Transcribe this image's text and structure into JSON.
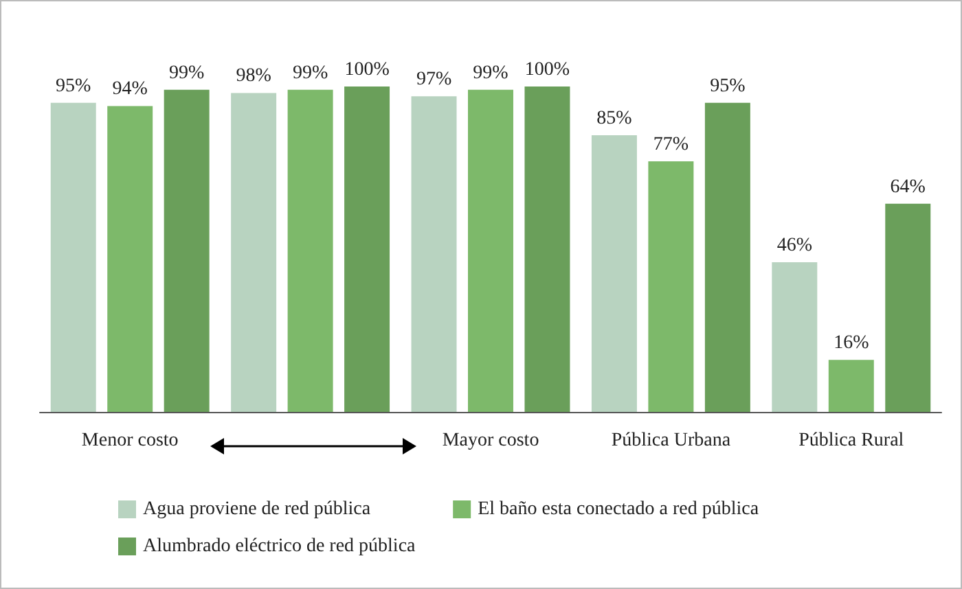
{
  "chart_data": {
    "type": "bar",
    "categories": [
      "Menor costo",
      null,
      "Mayor costo",
      "Pública Urbana",
      "Pública Rural"
    ],
    "series": [
      {
        "name": "Agua proviene de red pública",
        "color": "#b8d3c0",
        "values": [
          95,
          98,
          97,
          85,
          46
        ],
        "value_labels": [
          "95%",
          "98%",
          "97%",
          "85%",
          "46%"
        ]
      },
      {
        "name": "El baño esta conectado a red pública",
        "color": "#7db96a",
        "values": [
          94,
          99,
          99,
          77,
          16
        ],
        "value_labels": [
          "94%",
          "99%",
          "99%",
          "77%",
          "16%"
        ]
      },
      {
        "name": "Alumbrado eléctrico de red pública",
        "color": "#6a9f5a",
        "values": [
          99,
          100,
          100,
          95,
          64
        ],
        "value_labels": [
          "99%",
          "100%",
          "100%",
          "95%",
          "64%"
        ]
      }
    ],
    "legend": "bottom"
  }
}
